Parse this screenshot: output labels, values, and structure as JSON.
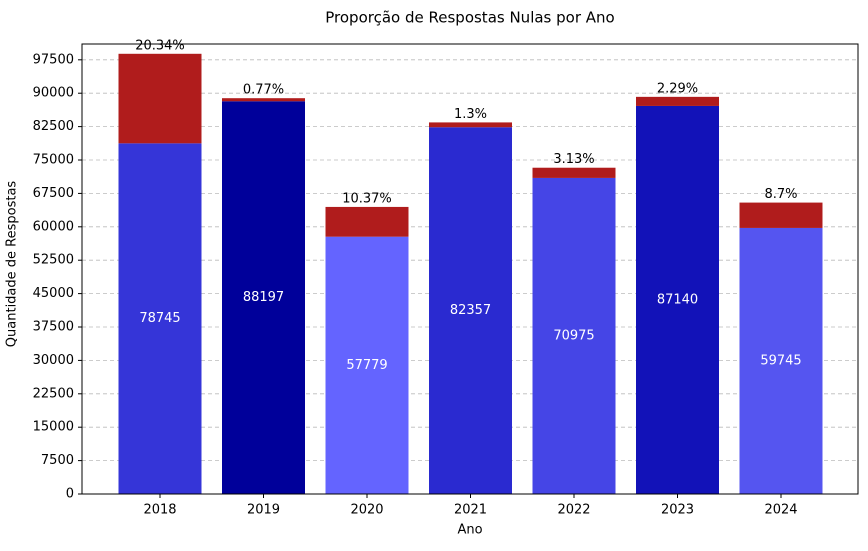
{
  "chart_data": {
    "type": "bar",
    "stacked": true,
    "title": "Proporção de Respostas Nulas por Ano",
    "x_label": "Ano",
    "y_label": "Quantidade de Respostas",
    "categories": [
      "2018",
      "2019",
      "2020",
      "2021",
      "2022",
      "2023",
      "2024"
    ],
    "series": [
      {
        "colors": [
          "#3535d8",
          "#00009a",
          "#6464ff",
          "#2a2ad0",
          "#4545e6",
          "#1212b8",
          "#5555f0"
        ],
        "values": [
          78745,
          88197,
          57779,
          82357,
          70975,
          87140,
          59745
        ],
        "show_labels": true
      },
      {
        "color": "#b01c1c",
        "values": [
          20106,
          684,
          6685,
          1085,
          2293,
          2042,
          5693
        ]
      }
    ],
    "annotations": [
      "20.34%",
      "0.77%",
      "10.37%",
      "1.3%",
      "3.13%",
      "2.29%",
      "8.7%"
    ],
    "ylim": [
      0,
      101050
    ],
    "yticks": [
      0,
      7500,
      15000,
      22500,
      30000,
      37500,
      45000,
      52500,
      60000,
      67500,
      75000,
      82500,
      90000,
      97500
    ],
    "grid": true
  }
}
